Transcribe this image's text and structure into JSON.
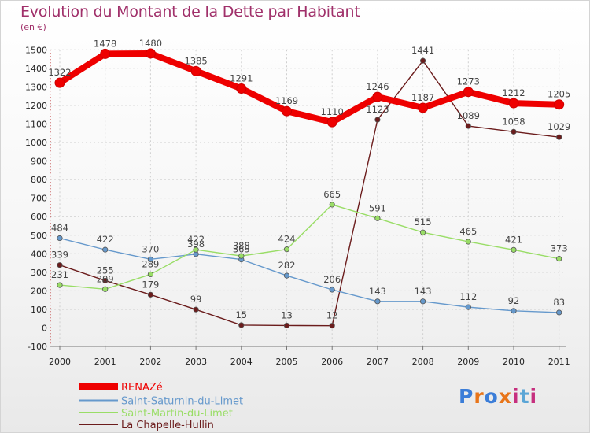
{
  "title": "Evolution du Montant de la Dette par Habitant",
  "unit": "(en €)",
  "logo": {
    "text": "Proxiti",
    "colors": [
      "#3b7dd8",
      "#e8751a",
      "#3b7dd8",
      "#e8751a",
      "#c62f7e",
      "#5aa5d6",
      "#c62f7e"
    ]
  },
  "chart_data": {
    "type": "line",
    "x": [
      "2000",
      "2001",
      "2002",
      "2003",
      "2004",
      "2005",
      "2006",
      "2007",
      "2008",
      "2009",
      "2010",
      "2011"
    ],
    "ylim": [
      -100,
      1500
    ],
    "yticks": [
      -100,
      0,
      100,
      200,
      300,
      400,
      500,
      600,
      700,
      800,
      900,
      1000,
      1100,
      1200,
      1300,
      1400,
      1500
    ],
    "grid": true,
    "legend_position": "bottom-left",
    "series": [
      {
        "name": "RENAZé",
        "color": "#ee0000",
        "values": [
          1322,
          1478,
          1480,
          1385,
          1291,
          1169,
          1110,
          1246,
          1187,
          1273,
          1212,
          1205
        ]
      },
      {
        "name": "Saint-Saturnin-du-Limet",
        "color": "#6699cc",
        "values": [
          484,
          422,
          370,
          398,
          369,
          282,
          206,
          143,
          143,
          112,
          92,
          83
        ]
      },
      {
        "name": "Saint-Martin-du-Limet",
        "color": "#99dd66",
        "values": [
          231,
          209,
          289,
          422,
          388,
          424,
          665,
          591,
          515,
          465,
          421,
          373
        ]
      },
      {
        "name": "La Chapelle-Hullin",
        "color": "#6b1c1c",
        "values": [
          339,
          255,
          179,
          99,
          15,
          13,
          12,
          1123,
          1441,
          1089,
          1058,
          1029
        ]
      }
    ]
  }
}
